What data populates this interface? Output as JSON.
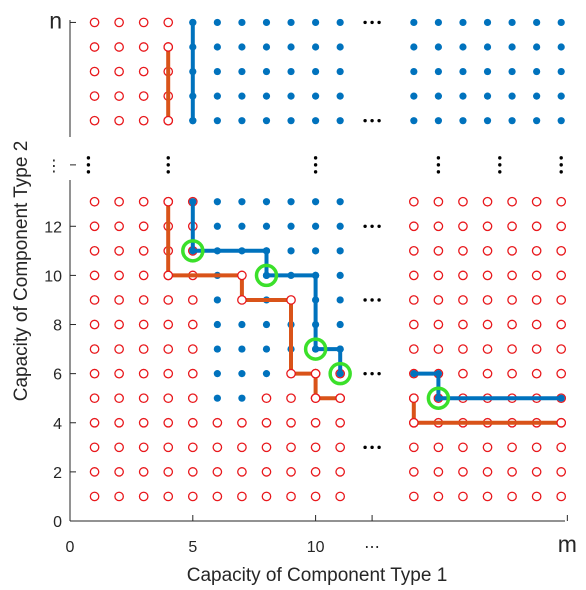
{
  "chart_data": {
    "type": "scatter",
    "title": "",
    "xlabel": "Capacity of Component Type 1",
    "ylabel": "Capacity of Component Type 2",
    "x_ticks": [
      {
        "pos": 0,
        "label": "0"
      },
      {
        "pos": 5,
        "label": "5"
      },
      {
        "pos": 10,
        "label": "10"
      },
      {
        "pos": 12.3,
        "label": "⋯"
      },
      {
        "pos": 20.25,
        "label": "m"
      }
    ],
    "y_ticks": [
      {
        "pos": 0,
        "label": "0"
      },
      {
        "pos": 2,
        "label": "2"
      },
      {
        "pos": 4,
        "label": "4"
      },
      {
        "pos": 6,
        "label": "6"
      },
      {
        "pos": 8,
        "label": "8"
      },
      {
        "pos": 10,
        "label": "10"
      },
      {
        "pos": 12,
        "label": "12"
      },
      {
        "pos": 14.5,
        "label": "⋮"
      },
      {
        "pos": 20.3,
        "label": "n"
      }
    ],
    "xlim": [
      0,
      20.25
    ],
    "ylim": [
      0,
      20.8
    ],
    "x_cols": [
      1,
      2,
      3,
      4,
      5,
      6,
      7,
      8,
      9,
      10,
      11,
      14,
      15,
      16,
      17,
      18,
      19,
      20
    ],
    "y_rows_lower": [
      1,
      2,
      3,
      4,
      5,
      6,
      7,
      8,
      9,
      10,
      11,
      12,
      13
    ],
    "y_rows_upper": [
      16.3,
      17.3,
      18.3,
      19.3,
      20.3
    ],
    "failure_boundary_lower": {
      "6": 4,
      "7": 4,
      "8": 5,
      "9": 5,
      "10": 6,
      "11": 6,
      "12": 7,
      "13": 7,
      "14": 20,
      "15": 20,
      "16": 20,
      "17": 20,
      "18": 20,
      "19": 20,
      "20": 20
    },
    "failure_boundary_upper": 4,
    "path_lower": {
      "success": [
        [
          5,
          13
        ],
        [
          5,
          11
        ],
        [
          8,
          11
        ],
        [
          8,
          10
        ],
        [
          10,
          10
        ],
        [
          10,
          7
        ],
        [
          11,
          7
        ],
        [
          11,
          6
        ]
      ],
      "failure": [
        [
          4,
          13
        ],
        [
          4,
          10
        ],
        [
          7,
          10
        ],
        [
          7,
          9
        ],
        [
          9,
          9
        ],
        [
          9,
          6
        ],
        [
          10,
          6
        ],
        [
          10,
          5
        ],
        [
          11,
          5
        ]
      ]
    },
    "path_right": {
      "success": [
        [
          14,
          6
        ],
        [
          15,
          6
        ],
        [
          15,
          5
        ],
        [
          20,
          5
        ]
      ],
      "failure": [
        [
          14,
          5
        ],
        [
          14,
          4
        ],
        [
          20,
          4
        ]
      ]
    },
    "path_upper": {
      "success": [
        [
          5,
          20.3
        ],
        [
          5,
          16.3
        ]
      ],
      "failure": [
        [
          4,
          19.3
        ],
        [
          4,
          16.3
        ]
      ]
    },
    "minimal_points": [
      [
        5,
        11
      ],
      [
        8,
        10
      ],
      [
        10,
        7
      ],
      [
        11,
        6
      ],
      [
        15,
        5
      ]
    ],
    "vdots_x": [
      0.75,
      4,
      10,
      15,
      17.5,
      20
    ],
    "vdots_y": 14.5,
    "hdots": [
      [
        12.3,
        20.3
      ],
      [
        12.3,
        16.3
      ],
      [
        12.3,
        12
      ],
      [
        12.3,
        9
      ],
      [
        12.3,
        6
      ],
      [
        12.3,
        3
      ]
    ],
    "colors": {
      "failure": "#e8181c",
      "success": "#0072bd",
      "failure_path": "#d95319",
      "success_path": "#0072bd",
      "highlight": "#3be02a"
    }
  }
}
